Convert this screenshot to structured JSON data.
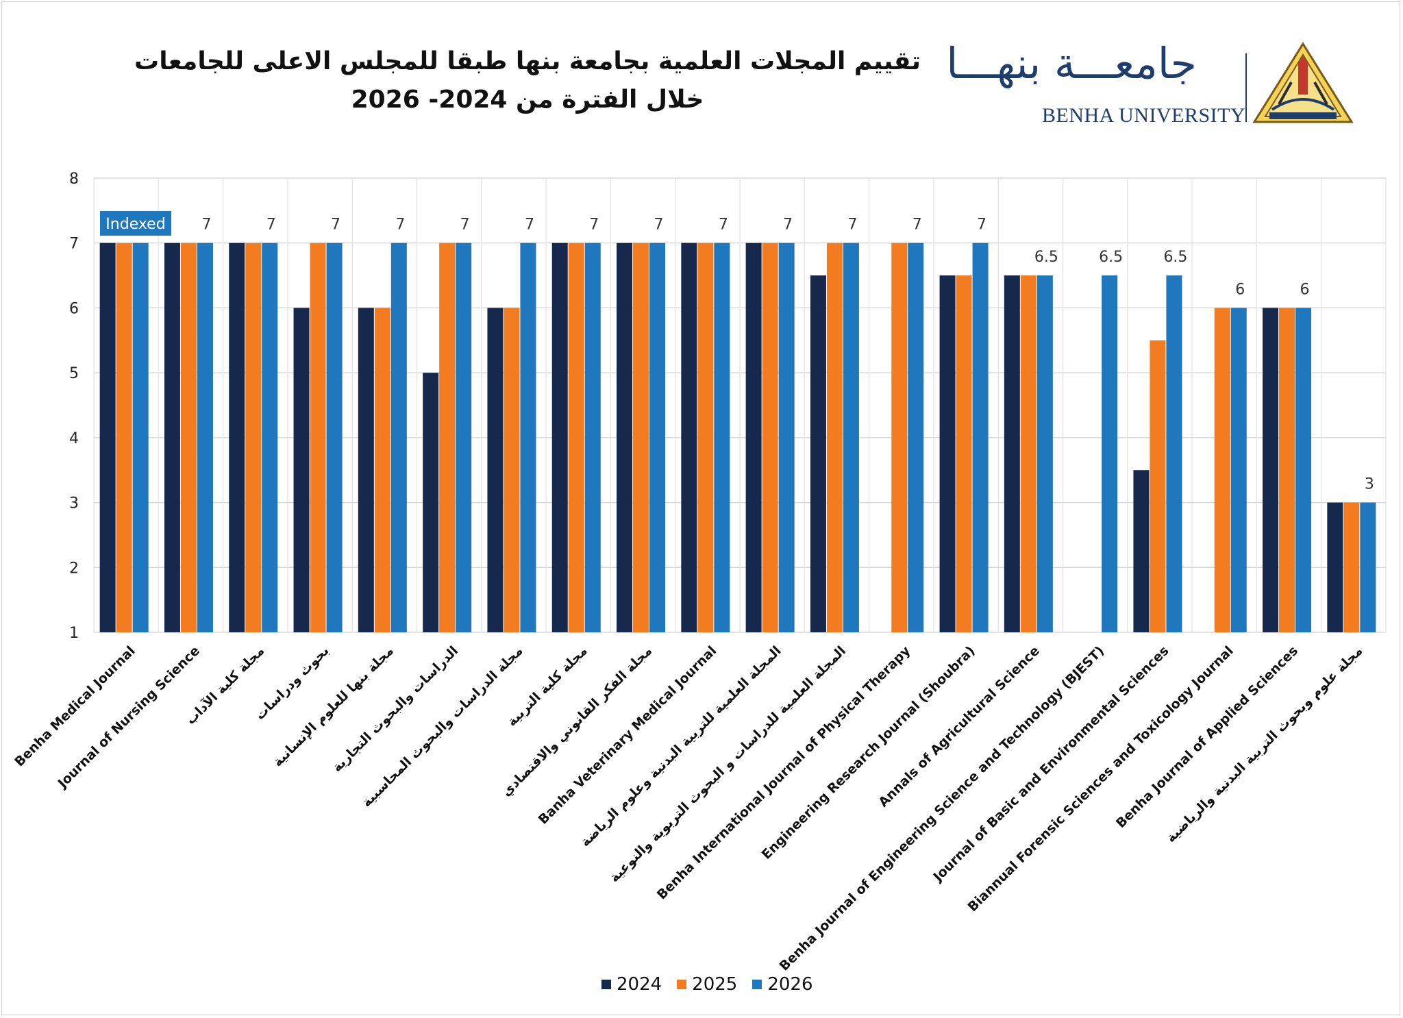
{
  "header": {
    "title_line1": "تقييم المجلات العلمية بجامعة بنها طبقا للمجلس الاعلى للجامعات",
    "title_line2": "خلال الفترة من  2024-  2026"
  },
  "logo": {
    "arabic_name": "جامعـــة بنهـــا",
    "english_name": "BENHA UNIVERSITY",
    "emblem_icon": "pyramid-emblem-icon"
  },
  "colors": {
    "2024": "#16294d",
    "2025": "#f47c20",
    "2026": "#1f77bd",
    "indexed_badge": "#1f77bd"
  },
  "chart_data": {
    "type": "bar",
    "ylim": [
      1,
      8
    ],
    "yticks": [
      "1",
      "2",
      "3",
      "4",
      "5",
      "6",
      "7",
      "8"
    ],
    "grid": true,
    "legend_position": "bottom",
    "annotation": "Indexed",
    "categories": [
      "Benha Medical Journal",
      "Journal of Nursing Science",
      "مجلة كلية الآداب",
      "بحوث ودراسات",
      "مجلة بنها للعلوم الإنسانية",
      "الدراسات والبحوث التجارية",
      "مجلة الدراسات والبحوث المحاسبية",
      "مجلة كلية التربية",
      "مجلة الفكر القانوني والاقتصادي",
      "Banha Veterinary Medical Journal",
      "المجلة العلمية للتربية البدنية وعلوم الرياضة",
      "المجلة العلمية للدراسات و البحوث التربوية والنوعية",
      "Benha International Journal of Physical Therapy",
      "Engineering Research Journal (Shoubra)",
      "Annals of Agricultural Science",
      "Benha Journal of Engineering Science and Technology (BJEST)",
      "Journal of Basic and Environmental Sciences",
      "Biannual Forensic Sciences and Toxicology Journal",
      "Benha Journal of Applied Sciences",
      "مجلة علوم وبحوث التربية البدنية والرياضية"
    ],
    "series": [
      {
        "name": "2024",
        "values": [
          7,
          7,
          7,
          6,
          6,
          5,
          6,
          7,
          7,
          7,
          7,
          6.5,
          null,
          6.5,
          6.5,
          null,
          3.5,
          null,
          6,
          3
        ]
      },
      {
        "name": "2025",
        "values": [
          7,
          7,
          7,
          7,
          6,
          7,
          6,
          7,
          7,
          7,
          7,
          7,
          7,
          6.5,
          6.5,
          null,
          5.5,
          6,
          6,
          3
        ]
      },
      {
        "name": "2026",
        "values": [
          7,
          7,
          7,
          7,
          7,
          7,
          7,
          7,
          7,
          7,
          7,
          7,
          7,
          7,
          6.5,
          6.5,
          6.5,
          6,
          6,
          3
        ]
      }
    ],
    "data_labels": [
      null,
      "7",
      "7",
      "7",
      "7",
      "7",
      "7",
      "7",
      "7",
      "7",
      "7",
      "7",
      "7",
      "7",
      "6.5",
      "6.5",
      "6.5",
      "6",
      "6",
      "3"
    ]
  }
}
